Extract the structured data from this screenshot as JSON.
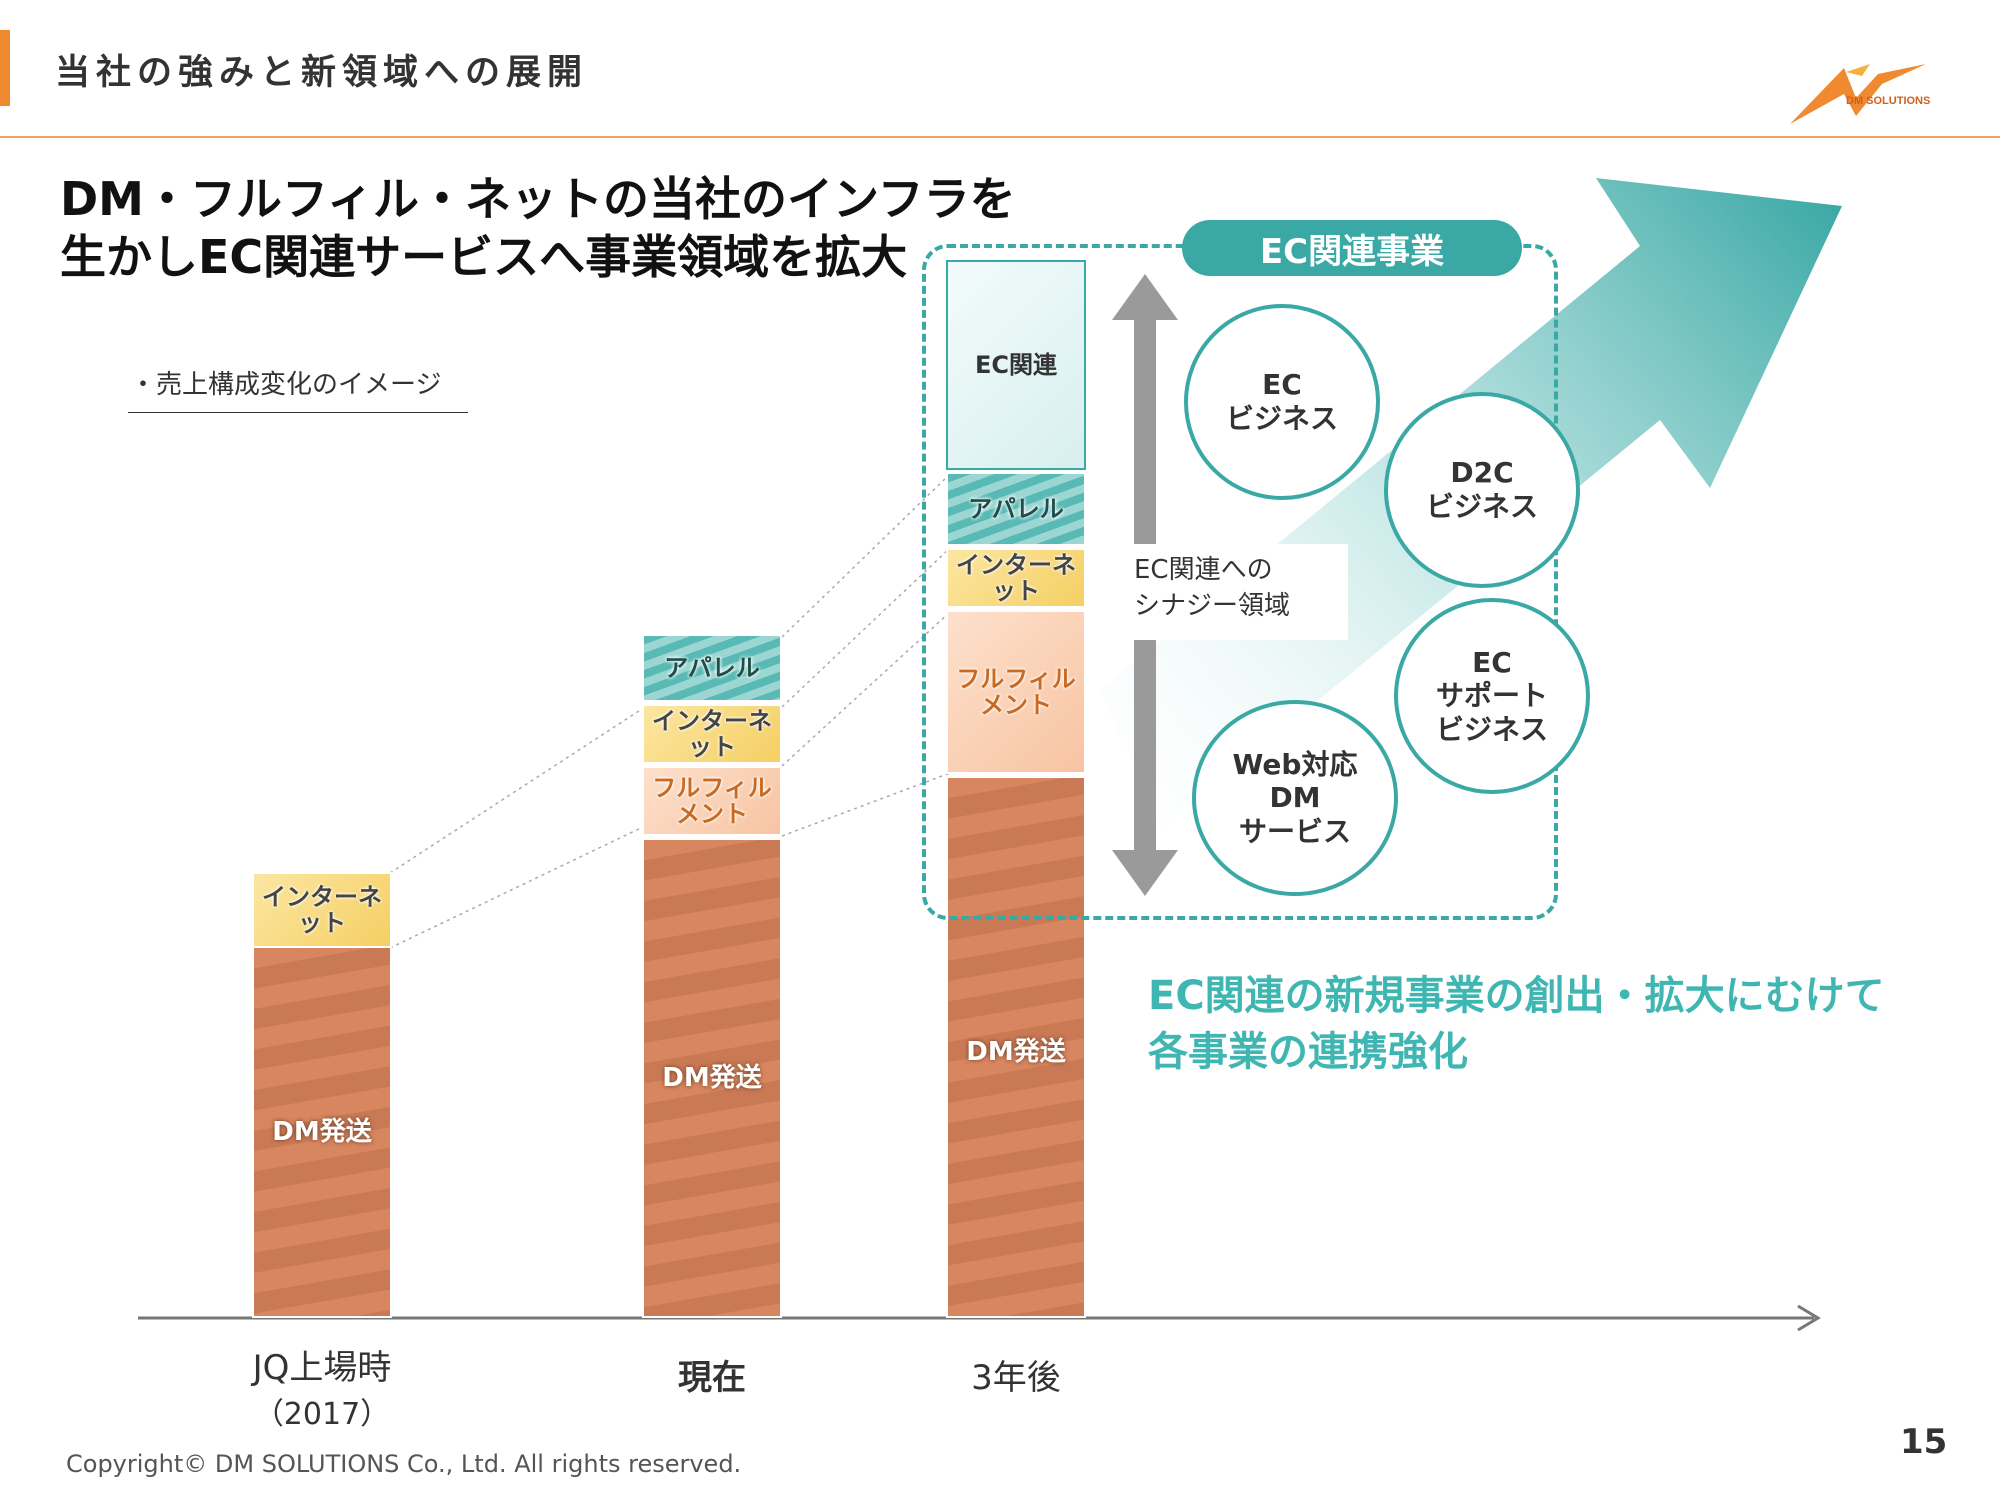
{
  "header": {
    "title": "当社の強みと新領域への展開"
  },
  "logo": {
    "text": "DM SOLUTIONS"
  },
  "headline": {
    "lines": [
      "DM・フルフィル・ネットの当社のインフラを",
      "生かしEC関連サービスへ事業領域を拡大"
    ]
  },
  "subtitle": "・売上構成変化のイメージ",
  "bars": [
    {
      "label": "JQ上場時",
      "sublabel": "（2017）",
      "segments": [
        {
          "type": "dm",
          "label": "DM発送"
        },
        {
          "type": "net",
          "label": "インターネット"
        }
      ]
    },
    {
      "label": "現在",
      "sublabel": "",
      "segments": [
        {
          "type": "dm",
          "label": "DM発送"
        },
        {
          "type": "ful",
          "label": "フルフィル\nメント"
        },
        {
          "type": "net",
          "label": "インターネット"
        },
        {
          "type": "app",
          "label": "アパレル"
        }
      ]
    },
    {
      "label": "3年後",
      "sublabel": "",
      "segments": [
        {
          "type": "dm",
          "label": "DM発送"
        },
        {
          "type": "ful",
          "label": "フルフィル\nメント"
        },
        {
          "type": "net",
          "label": "インターネット"
        },
        {
          "type": "app",
          "label": "アパレル"
        },
        {
          "type": "ec",
          "label": "EC関連"
        }
      ]
    }
  ],
  "ec_section": {
    "title": "EC関連事業",
    "synergy_label": "EC関連への\nシナジー領域",
    "circles": [
      "EC\nビジネス",
      "D2C\nビジネス",
      "EC\nサポート\nビジネス",
      "Web対応\nDM\nサービス"
    ]
  },
  "tagline": "EC関連の新規事業の創出・拡大にむけて\n各事業の連携強化",
  "footer": {
    "copyright": "Copyright© DM SOLUTIONS Co., Ltd. All rights reserved.",
    "page_number": "15"
  },
  "colors": {
    "accent": "#f08a30",
    "teal": "#3aa8a5",
    "teal_text": "#3fb6b2"
  }
}
